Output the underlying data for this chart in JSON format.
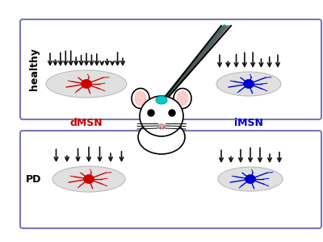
{
  "bg_color": "#ffffff",
  "panel_box_color": "#7777bb",
  "dmsn_color": "#cc0000",
  "imsn_color": "#0000cc",
  "healthy_label": "healthy",
  "pd_label": "PD",
  "dmsn_label": "dMSN",
  "imsn_label": "iMSN",
  "ellipse_color": "#dddddd",
  "spike_color": "#111111",
  "teal_color": "#00cccc",
  "figsize": [
    4.0,
    3.0
  ],
  "dpi": 100,
  "healthy_dmsn_n_spikes": 15,
  "healthy_imsn_n_spikes": 8,
  "pd_dmsn_n_spikes": 7,
  "pd_imsn_n_spikes": 7
}
